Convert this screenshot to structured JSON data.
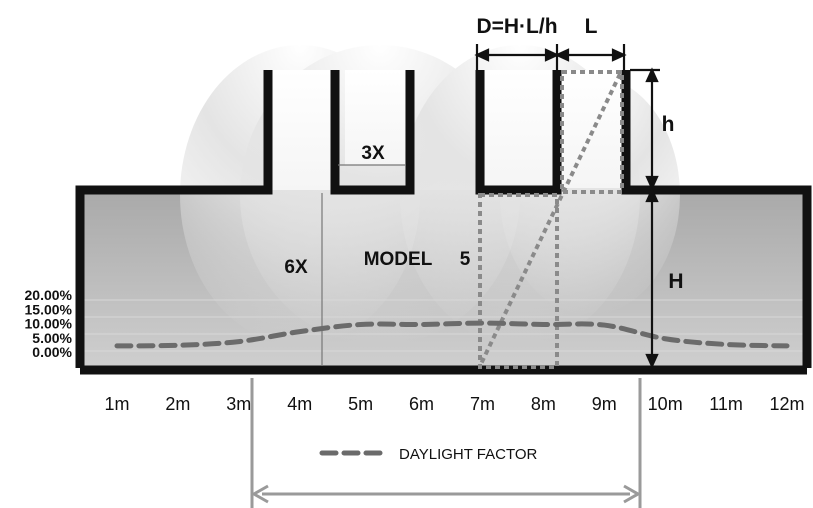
{
  "chart_data": {
    "type": "line",
    "title": "",
    "annotation_model": "MODEL",
    "annotation_number": "5",
    "label_6x": "6X",
    "label_3x": "3X",
    "label_h": "h",
    "label_H": "H",
    "label_L": "L",
    "label_D": "D=H·L/h",
    "x_ticks": [
      "1m",
      "2m",
      "3m",
      "4m",
      "5m",
      "6m",
      "7m",
      "8m",
      "9m",
      "10m",
      "11m",
      "12m"
    ],
    "y_ticks": [
      "20.00%",
      "15.00%",
      "10.00%",
      "5.00%",
      "0.00%"
    ],
    "y_values": [
      20,
      15,
      10,
      5,
      0
    ],
    "ylim": [
      0,
      20
    ],
    "series": [
      {
        "name": "DAYLIGHT FACTOR",
        "x": [
          1,
          2,
          3,
          4,
          5,
          6,
          7,
          8,
          9,
          10,
          11,
          12
        ],
        "values": [
          2.5,
          2.7,
          4.0,
          7.5,
          10.0,
          10.0,
          10.5,
          10.0,
          9.8,
          5.0,
          3.0,
          2.5
        ]
      }
    ],
    "legend_label": "DAYLIGHT FACTOR",
    "colors": {
      "frame": "#111111",
      "curve": "#6b6b6b",
      "dotted": "#8a8a8a",
      "dimension": "#9a9a9a"
    }
  }
}
